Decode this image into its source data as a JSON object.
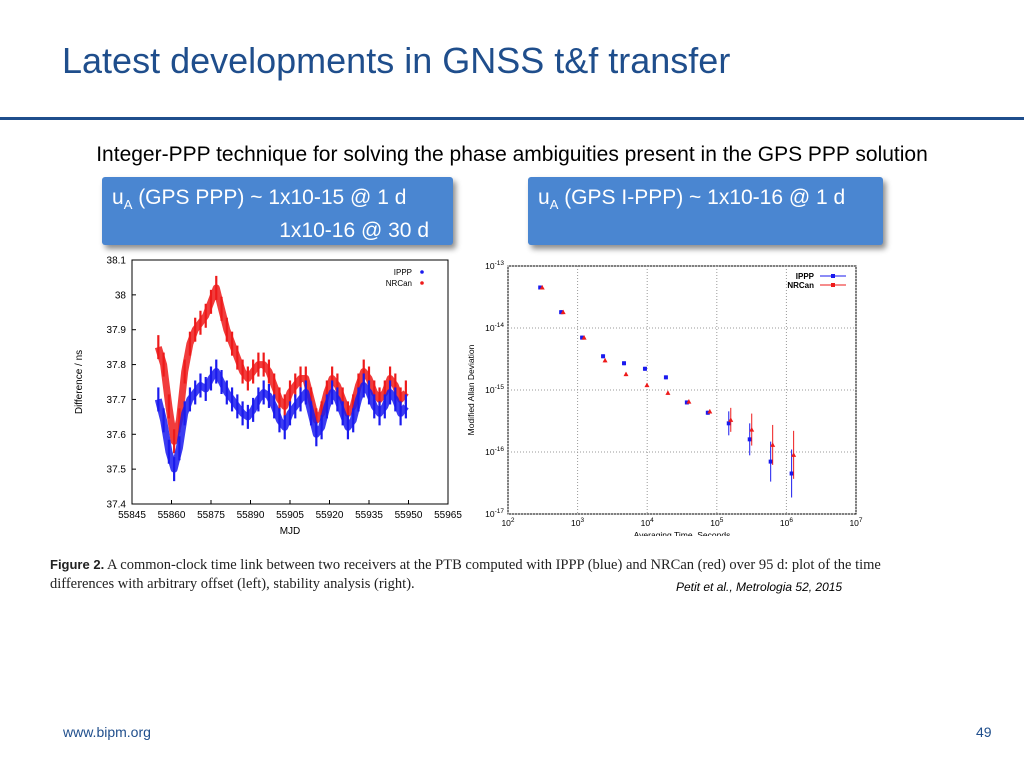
{
  "slide": {
    "title": "Latest developments in GNSS t&f transfer",
    "subtitle": "Integer-PPP technique for solving the phase ambiguities present in the GPS PPP solution",
    "footer_url": "www.bipm.org",
    "page_number": "49"
  },
  "callouts": {
    "left": {
      "u": "u",
      "sub": "A",
      "line1_rest": " (GPS PPP) ~ 1x10-15 @   1 d",
      "line2": "1x10-16 @ 30 d"
    },
    "right": {
      "u": "u",
      "sub": "A",
      "line1_rest": " (GPS I-PPP) ~ 1x10-16 @   1 d"
    }
  },
  "figure": {
    "caption_label": "Figure 2.",
    "caption_text": "  A common-clock time link between two receivers at the PTB computed with IPPP (blue) and NRCan (red) over 95 d: plot of the time differences with arbitrary offset (left), stability analysis (right).",
    "citation": "Petit et al., Metrologia 52, 2015"
  },
  "colors": {
    "title": "#1f4e8c",
    "callout": "#4a86d1",
    "ippp": "#1a1aee",
    "nrcan": "#ee1a1a"
  },
  "chart_data": [
    {
      "type": "scatter",
      "ylabel": "Difference / ns",
      "xlabel": "MJD",
      "xlim": [
        55845,
        55965
      ],
      "ylim": [
        37.4,
        38.1
      ],
      "xticks": [
        55845,
        55860,
        55875,
        55890,
        55905,
        55920,
        55935,
        55950,
        55965
      ],
      "yticks": [
        "37.4",
        "37.5",
        "37.6",
        "37.7",
        "37.8",
        "37.9",
        "38",
        "38.1"
      ],
      "legend": [
        "IPPP",
        "NRCan"
      ],
      "legend_position": "top-right",
      "series": [
        {
          "name": "IPPP",
          "x": [
            55855,
            55857,
            55859,
            55861,
            55863,
            55865,
            55867,
            55869,
            55871,
            55873,
            55875,
            55877,
            55879,
            55881,
            55883,
            55885,
            55887,
            55889,
            55891,
            55893,
            55895,
            55897,
            55899,
            55901,
            55903,
            55905,
            55907,
            55909,
            55911,
            55913,
            55915,
            55917,
            55919,
            55921,
            55923,
            55925,
            55927,
            55929,
            55931,
            55933,
            55935,
            55937,
            55939,
            55941,
            55943,
            55945,
            55947,
            55949
          ],
          "y": [
            37.7,
            37.64,
            37.55,
            37.5,
            37.56,
            37.66,
            37.7,
            37.72,
            37.74,
            37.73,
            37.76,
            37.78,
            37.75,
            37.72,
            37.7,
            37.68,
            37.66,
            37.65,
            37.67,
            37.7,
            37.72,
            37.71,
            37.68,
            37.64,
            37.62,
            37.66,
            37.68,
            37.7,
            37.72,
            37.66,
            37.6,
            37.62,
            37.68,
            37.72,
            37.7,
            37.66,
            37.62,
            37.64,
            37.7,
            37.74,
            37.72,
            37.68,
            37.66,
            37.68,
            37.72,
            37.7,
            37.66,
            37.68
          ]
        },
        {
          "name": "NRCan",
          "x": [
            55855,
            55857,
            55859,
            55861,
            55863,
            55865,
            55867,
            55869,
            55871,
            55873,
            55875,
            55877,
            55879,
            55881,
            55883,
            55885,
            55887,
            55889,
            55891,
            55893,
            55895,
            55897,
            55899,
            55901,
            55903,
            55905,
            55907,
            55909,
            55911,
            55913,
            55915,
            55917,
            55919,
            55921,
            55923,
            55925,
            55927,
            55929,
            55931,
            55933,
            55935,
            55937,
            55939,
            55941,
            55943,
            55945,
            55947,
            55949
          ],
          "y": [
            37.85,
            37.8,
            37.68,
            37.58,
            37.64,
            37.78,
            37.86,
            37.9,
            37.92,
            37.94,
            37.98,
            38.02,
            37.96,
            37.9,
            37.86,
            37.82,
            37.78,
            37.76,
            37.78,
            37.8,
            37.8,
            37.78,
            37.74,
            37.7,
            37.68,
            37.72,
            37.74,
            37.76,
            37.76,
            37.7,
            37.64,
            37.66,
            37.72,
            37.76,
            37.74,
            37.7,
            37.66,
            37.68,
            37.74,
            37.78,
            37.76,
            37.72,
            37.7,
            37.72,
            37.76,
            37.74,
            37.7,
            37.72
          ]
        }
      ]
    },
    {
      "type": "scatter",
      "xlabel": "Averaging Time, Seconds",
      "ylabel": "Modified Allan Deviation",
      "xscale": "log",
      "yscale": "log",
      "xlim": [
        100,
        10000000
      ],
      "ylim": [
        1e-17,
        1e-13
      ],
      "xticks": [
        "10^2",
        "10^3",
        "10^4",
        "10^5",
        "10^6",
        "10^7"
      ],
      "yticks": [
        "10^-17",
        "10^-16",
        "10^-15",
        "10^-14",
        "10^-13"
      ],
      "legend": [
        "IPPP",
        "NRCan"
      ],
      "legend_position": "top-right",
      "series": [
        {
          "name": "IPPP",
          "x": [
            300,
            600,
            1200,
            2400,
            4800,
            9600,
            19200,
            38400,
            76800,
            153600,
            307200,
            614400,
            1228800
          ],
          "y": [
            4.5e-14,
            1.8e-14,
            7e-15,
            3.5e-15,
            2.7e-15,
            2.2e-15,
            1.6e-15,
            6.3e-16,
            4.3e-16,
            2.9e-16,
            1.6e-16,
            7e-17,
            4.5e-17
          ]
        },
        {
          "name": "NRCan",
          "x": [
            300,
            600,
            1200,
            2400,
            4800,
            9600,
            19200,
            38400,
            76800,
            153600,
            307200,
            614400,
            1228800
          ],
          "y": [
            4.5e-14,
            1.8e-14,
            7e-15,
            3e-15,
            1.8e-15,
            1.2e-15,
            9e-16,
            6.5e-16,
            4.5e-16,
            3.3e-16,
            2.3e-16,
            1.3e-16,
            9e-17
          ]
        }
      ]
    }
  ]
}
